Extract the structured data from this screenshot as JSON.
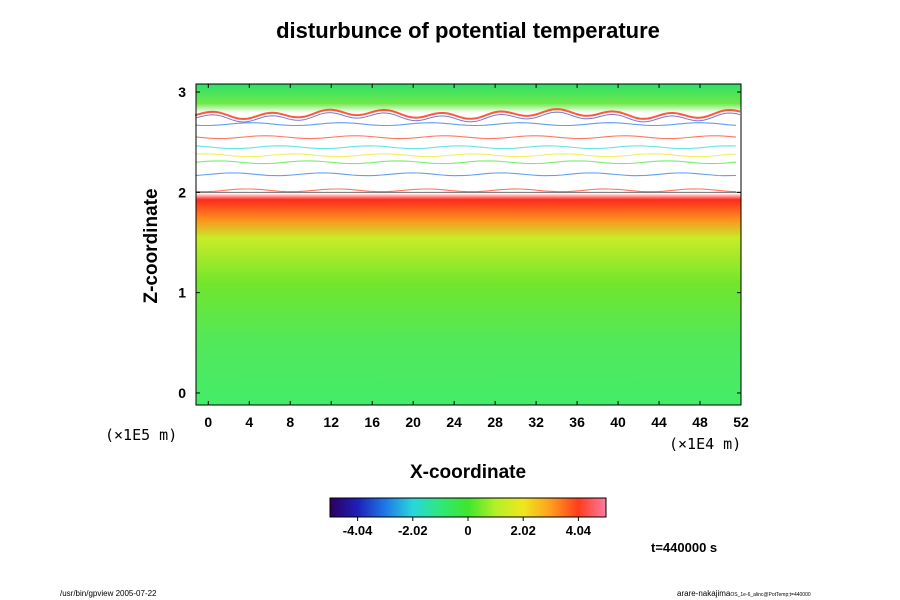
{
  "chart_data": {
    "type": "heatmap",
    "title": "disturbunce of potential temperature",
    "xlabel": "X-coordinate",
    "ylabel": "Z-coordinate",
    "x_unit": "(×1E4 m)",
    "y_unit": "(×1E5 m)",
    "xlim": [
      -1.2,
      52
    ],
    "ylim": [
      -0.12,
      3.08
    ],
    "x_ticks": [
      0,
      4,
      8,
      12,
      16,
      20,
      24,
      28,
      32,
      36,
      40,
      44,
      48,
      52
    ],
    "y_ticks": [
      0,
      1,
      2,
      3
    ],
    "colorbar": {
      "ticks": [
        "-4.04",
        "-2.02",
        "0",
        "2.02",
        "4.04"
      ],
      "range": [
        -5.05,
        5.05
      ],
      "colors": [
        "#2a0060",
        "#1f1fb8",
        "#1e78e6",
        "#28d7dc",
        "#2fe87a",
        "#3ee62d",
        "#b4f027",
        "#f0e61e",
        "#ff9d1e",
        "#ff3c1e",
        "#ff7aa3"
      ]
    },
    "z_profile": [
      {
        "z": 0.0,
        "value": 0.05
      },
      {
        "z": 1.0,
        "value": 0.3
      },
      {
        "z": 1.5,
        "value": 1.2
      },
      {
        "z": 1.75,
        "value": 2.4
      },
      {
        "z": 1.9,
        "value": 4.0
      },
      {
        "z": 2.0,
        "value": null
      },
      {
        "z": 2.75,
        "value": null
      },
      {
        "z": 2.85,
        "value": 0.6
      },
      {
        "z": 3.08,
        "value": 0.8
      }
    ],
    "time_label": "t=440000 s"
  },
  "footer": {
    "left": "/usr/bin/gpview 2005-07-22",
    "right_main": "arare-nakajima",
    "right_small": "OS_1e-6_alinc@PotTemp;t=440000"
  }
}
